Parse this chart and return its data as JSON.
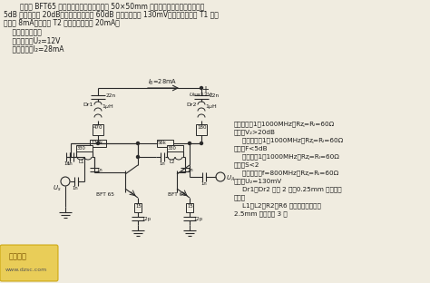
{
  "bg_color": "#f0ece0",
  "text_color": "#1a1a1a",
  "line_color": "#2a2a2a",
  "desc1": "由两个 BFT65 构成的宽带放大器装在一块 50×50mm 的铜涂层板上。在噪声系数为",
  "desc2": "5dB 时放大量为 20dB，在交叉调制衰减 60dB 时输出电压为 130mV。第一级晶体管 T1 的集",
  "desc3": "电流为 8mA，第二级 T2 的集电极电流为 20mA。",
  "spec0": "    主要技术数据：",
  "spec1": "    工作电压：U₂=12V",
  "spec2": "    工作电流：I₂=28mA",
  "r1a": "放大系数（1～1000MHz，Rⱬ=Rₗ=60Ω",
  "r1b": "时）：V₂>20dB",
  "r2a": "    噪声系数（1～1000MHz，Rⱬ=Rₗ=60Ω",
  "r2b": "时）：F<5dB",
  "r3a": "    驼波比（1～1000MHz，Rⱬ=Rₗ=60Ω",
  "r3b": "时）：S<2",
  "r4a": "    输出电压（f=800MHz，Rⱬ=Rₗ=60Ω",
  "r4b": "时）：U₂=130mV",
  "r5a": "    Dr1、Dr2 均为 2 匹，0.25mm 铜线，穿",
  "r5b": "孔磁芯",
  "r6a": "    L1、L2；R2、R6 的导线引线，各在",
  "r6b": "2.5mm 芯杆上绕 3 匹",
  "watermark": "www.dzsc.com"
}
